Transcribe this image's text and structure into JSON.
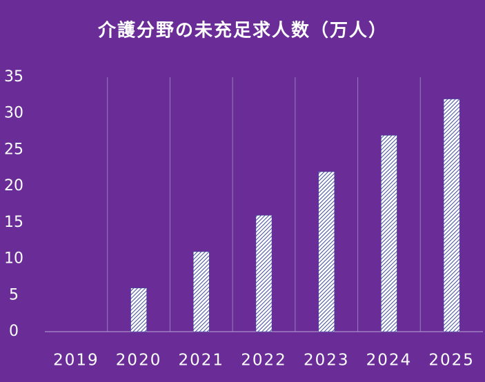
{
  "chart_data": {
    "type": "bar",
    "title": "介護分野の未充足求人数（万人）",
    "categories": [
      "2019",
      "2020",
      "2021",
      "2022",
      "2023",
      "2024",
      "2025"
    ],
    "values": [
      0,
      6,
      11,
      16,
      22,
      27,
      32
    ],
    "color": "#3b4a9c",
    "ylim": [
      0,
      35
    ],
    "yticks": [
      0,
      5,
      10,
      15,
      20,
      25,
      30,
      35
    ],
    "grid": false
  }
}
